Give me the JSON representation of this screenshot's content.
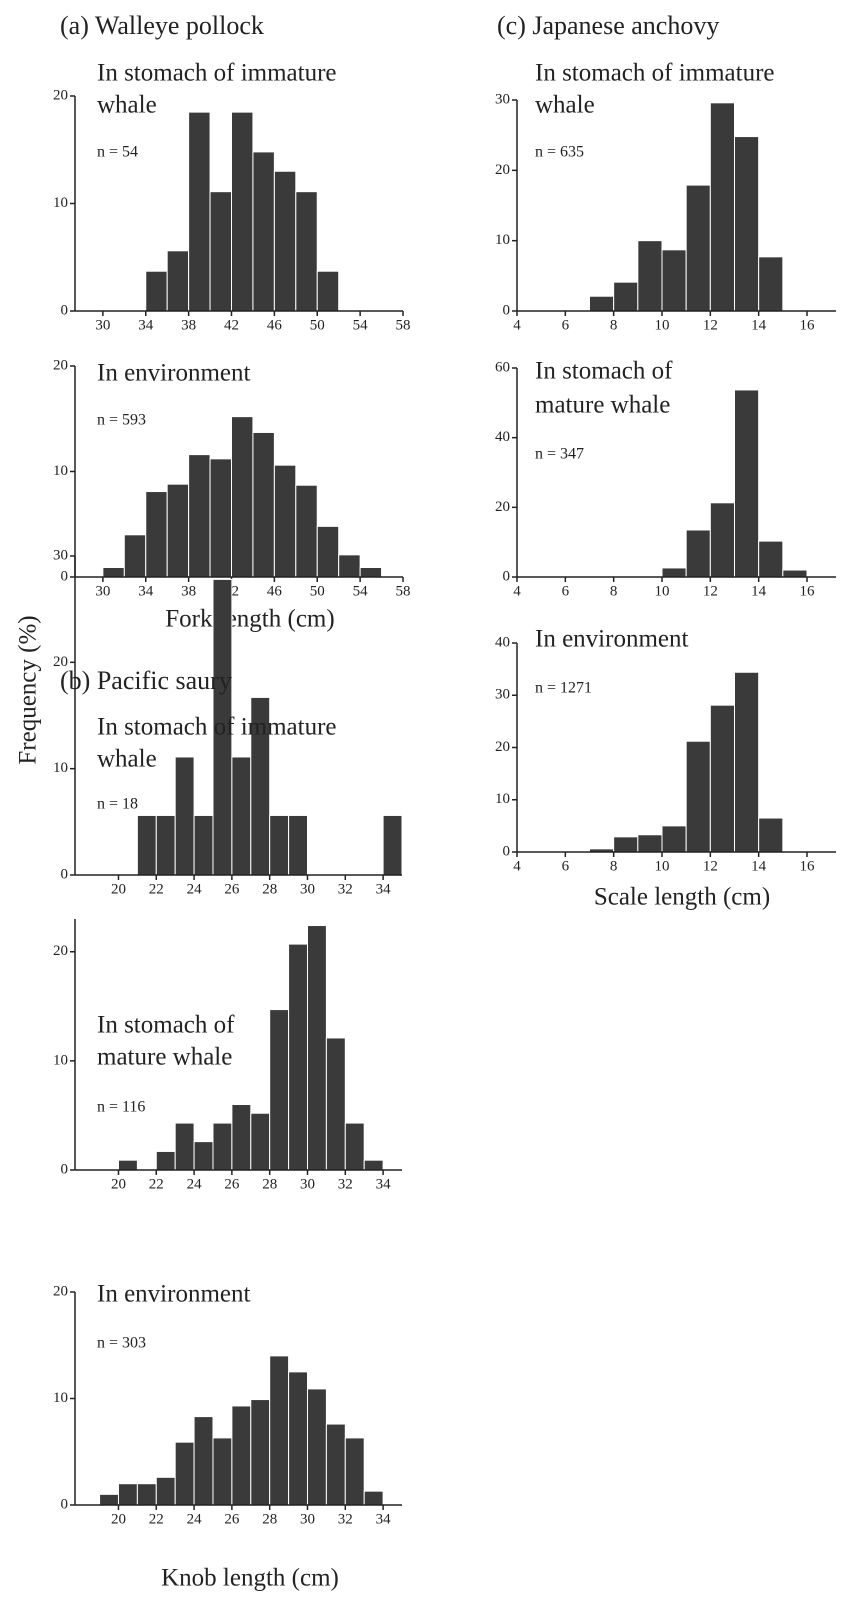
{
  "ylabel": "Frequency (%)",
  "chart_data": [
    {
      "type": "histogram",
      "title": "(a) Walleye pollock",
      "subtitle": [
        "In stomach of immature",
        "whale"
      ],
      "annotation": "n = 54",
      "bins": [
        34,
        36,
        38,
        40,
        42,
        44,
        46,
        48,
        50,
        52
      ],
      "values": [
        3.7,
        5.6,
        18.5,
        11.1,
        18.5,
        14.8,
        13.0,
        11.1,
        3.7
      ],
      "color": "#3a3a3a",
      "xlim": [
        27.4,
        58
      ],
      "xticks": [
        30,
        34,
        38,
        42,
        46,
        50,
        54,
        58
      ],
      "ylim": [
        0,
        20
      ],
      "yticks": [
        0,
        10,
        20
      ]
    },
    {
      "type": "histogram",
      "subtitle": [
        "In environment"
      ],
      "annotation": "n = 593",
      "xlabel": "Fork length (cm)",
      "bins": [
        30,
        32,
        34,
        36,
        38,
        40,
        42,
        44,
        46,
        48,
        50,
        52,
        54,
        56
      ],
      "values": [
        0.9,
        4.0,
        8.1,
        8.8,
        11.6,
        11.2,
        15.2,
        13.7,
        10.6,
        8.7,
        4.8,
        2.1,
        0.9
      ],
      "color": "#3a3a3a",
      "xlim": [
        27.4,
        58
      ],
      "xticks": [
        30,
        34,
        38,
        42,
        46,
        50,
        54,
        58
      ],
      "ylim": [
        0,
        20
      ],
      "yticks": [
        0,
        10,
        20
      ]
    },
    {
      "type": "histogram",
      "title": "(b) Pacific saury",
      "subtitle": [
        "In stomach of immature",
        "whale"
      ],
      "annotation": "n = 18",
      "bins": [
        21,
        22,
        23,
        24,
        25,
        26,
        27,
        28,
        29,
        30,
        31,
        32,
        33,
        34,
        35
      ],
      "values": [
        5.6,
        5.6,
        11.1,
        5.6,
        27.8,
        11.1,
        16.7,
        5.6,
        5.6,
        0,
        0,
        0,
        0,
        5.6
      ],
      "color": "#3a3a3a",
      "xlim": [
        17.7,
        35
      ],
      "xticks": [
        20,
        22,
        24,
        26,
        28,
        30,
        32,
        34
      ],
      "ylim": [
        0,
        30
      ],
      "yticks": [
        0,
        10,
        20,
        30
      ]
    },
    {
      "type": "histogram",
      "subtitle": [
        "In stomach of",
        "mature whale"
      ],
      "annotation": "n = 116",
      "bins": [
        20,
        21,
        22,
        23,
        24,
        25,
        26,
        27,
        28,
        29,
        30,
        31,
        32,
        33,
        34
      ],
      "values": [
        0.9,
        0,
        1.7,
        4.3,
        2.6,
        4.3,
        6.0,
        5.2,
        14.7,
        20.7,
        22.4,
        12.1,
        4.3,
        0.9
      ],
      "color": "#3a3a3a",
      "xlim": [
        17.7,
        35
      ],
      "xticks": [
        20,
        22,
        24,
        26,
        28,
        30,
        32,
        34
      ],
      "ylim": [
        0,
        23
      ],
      "yticks": [
        0,
        10,
        20
      ]
    },
    {
      "type": "histogram",
      "subtitle": [
        "In environment"
      ],
      "annotation": "n = 303",
      "xlabel": "Knob length (cm)",
      "bins": [
        19,
        20,
        21,
        22,
        23,
        24,
        25,
        26,
        27,
        28,
        29,
        30,
        31,
        32,
        33,
        34
      ],
      "values": [
        1.0,
        2.0,
        2.0,
        2.6,
        5.9,
        8.3,
        6.3,
        9.3,
        9.9,
        14.0,
        12.5,
        10.9,
        7.6,
        6.3,
        1.3
      ],
      "color": "#3a3a3a",
      "xlim": [
        17.7,
        35
      ],
      "xticks": [
        20,
        22,
        24,
        26,
        28,
        30,
        32,
        34
      ],
      "ylim": [
        0,
        20
      ],
      "yticks": [
        0,
        10,
        20
      ]
    },
    {
      "type": "histogram",
      "title": "(c) Japanese anchovy",
      "subtitle": [
        "In stomach of immature",
        "whale"
      ],
      "annotation": "n = 635",
      "bins": [
        7,
        8,
        9,
        10,
        11,
        12,
        13,
        14,
        15
      ],
      "values": [
        2.1,
        4.1,
        10.0,
        8.7,
        17.9,
        29.6,
        24.8,
        7.7
      ],
      "color": "#3a3a3a",
      "xlim": [
        4,
        17.2
      ],
      "xticks": [
        4,
        6,
        8,
        10,
        12,
        14,
        16
      ],
      "ylim": [
        0,
        30
      ],
      "yticks": [
        0,
        10,
        20,
        30
      ]
    },
    {
      "type": "histogram",
      "subtitle": [
        "In stomach of",
        "mature whale"
      ],
      "annotation": "n = 347",
      "bins": [
        10,
        11,
        12,
        13,
        14,
        15,
        16
      ],
      "values": [
        2.6,
        13.5,
        21.3,
        53.7,
        10.3,
        2.0
      ],
      "color": "#3a3a3a",
      "xlim": [
        4,
        17.2
      ],
      "xticks": [
        4,
        6,
        8,
        10,
        12,
        14,
        16
      ],
      "ylim": [
        0,
        60
      ],
      "yticks": [
        0,
        20,
        40,
        60
      ]
    },
    {
      "type": "histogram",
      "subtitle": [
        "In environment"
      ],
      "annotation": "n = 1271",
      "xlabel": "Scale length (cm)",
      "bins": [
        7,
        8,
        9,
        10,
        11,
        12,
        13,
        14,
        15
      ],
      "values": [
        0.6,
        2.9,
        3.3,
        5.0,
        21.2,
        28.1,
        34.4,
        6.5
      ],
      "color": "#3a3a3a",
      "xlim": [
        4,
        17.2
      ],
      "xticks": [
        4,
        6,
        8,
        10,
        12,
        14,
        16
      ],
      "ylim": [
        0,
        40
      ],
      "yticks": [
        0,
        10,
        20,
        30,
        40
      ]
    }
  ]
}
